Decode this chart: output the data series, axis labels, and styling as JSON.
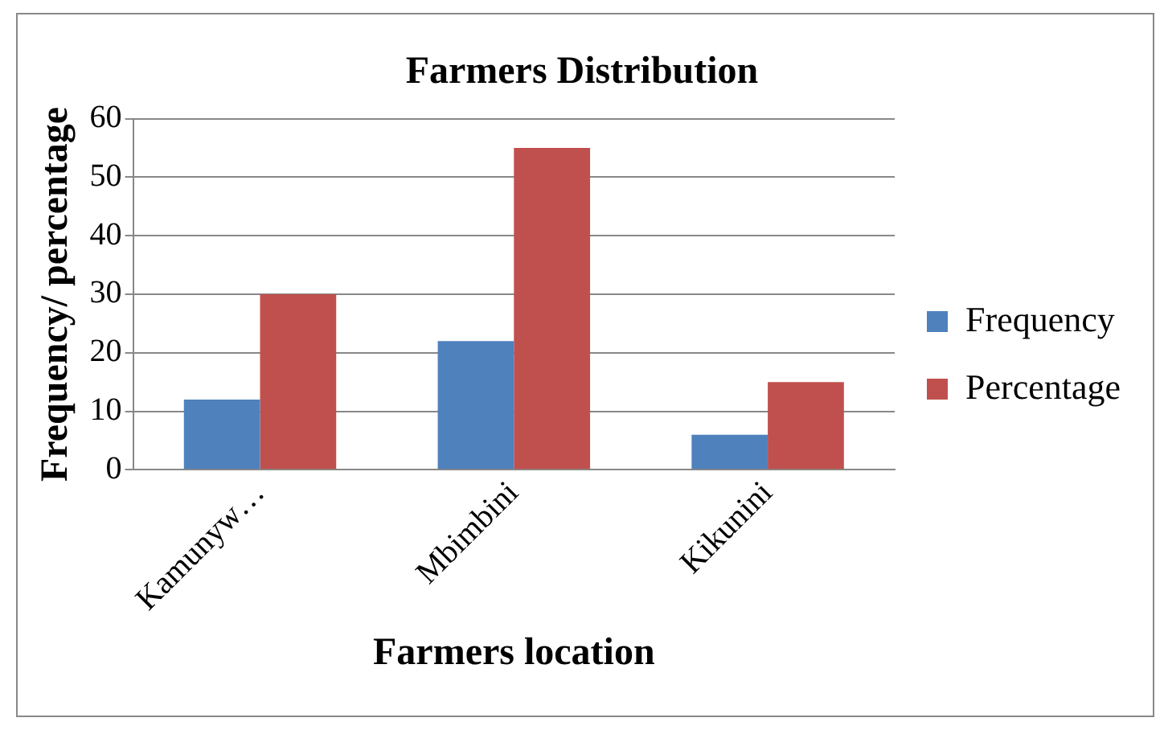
{
  "chart_data": {
    "type": "bar",
    "title": "Farmers Distribution",
    "xlabel": "Farmers location",
    "ylabel": "Frequency/ percentage",
    "categories": [
      "Kamunyw…",
      "Mbimbini",
      "Kikunini"
    ],
    "series": [
      {
        "name": "Frequency",
        "color": "#4f81bd",
        "values": [
          12,
          22,
          6
        ]
      },
      {
        "name": "Percentage",
        "color": "#c0504d",
        "values": [
          30,
          55,
          15
        ]
      }
    ],
    "ylim": [
      0,
      60
    ],
    "yticks": [
      0,
      10,
      20,
      30,
      40,
      50,
      60
    ],
    "grid": "y",
    "legend": "right"
  }
}
